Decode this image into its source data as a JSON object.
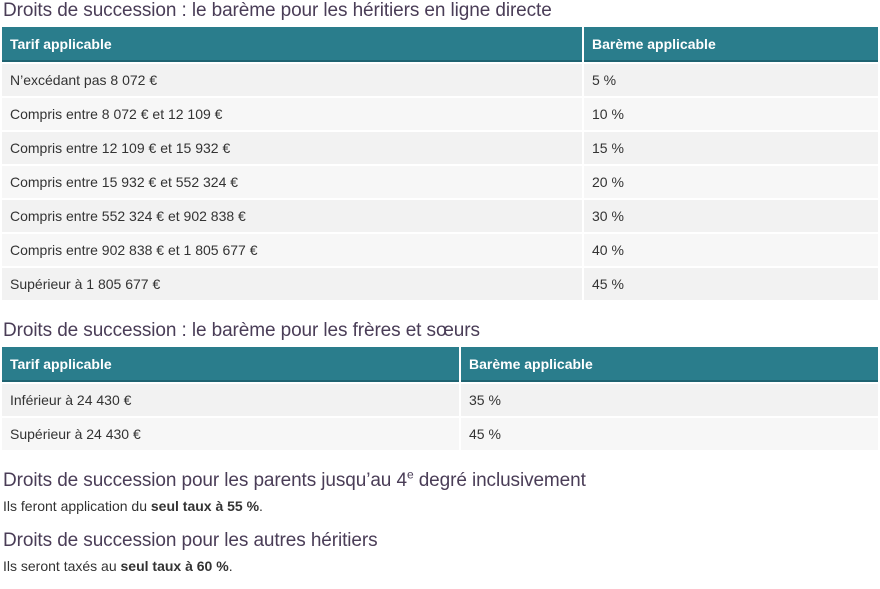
{
  "sections": [
    {
      "title": "Droits de succession : le barème pour les héritiers en ligne directe",
      "table": {
        "header": [
          "Tarif applicable",
          "Barème applicable"
        ],
        "rows": [
          [
            "N’excédant pas 8 072 €",
            "5 %"
          ],
          [
            "Compris entre 8 072 € et 12 109 €",
            "10 %"
          ],
          [
            "Compris entre 12 109 € et 15 932 €",
            "15 %"
          ],
          [
            "Compris entre 15 932 € et 552 324 €",
            "20 %"
          ],
          [
            "Compris entre 552 324 € et 902 838 €",
            "30 %"
          ],
          [
            "Compris entre 902 838 € et 1 805 677 €",
            "40 %"
          ],
          [
            "Supérieur à 1 805 677 €",
            "45 %"
          ]
        ]
      }
    },
    {
      "title": "Droits de succession : le barème pour les frères et sœurs",
      "table": {
        "header": [
          "Tarif applicable",
          "Barème applicable"
        ],
        "rows": [
          [
            "Inférieur à 24 430 €",
            "35 %"
          ],
          [
            "Supérieur à 24 430 €",
            "45 %"
          ]
        ]
      }
    }
  ],
  "notes": [
    {
      "title": {
        "before": "Droits de succession pour les parents jusqu’au 4",
        "sup": "e",
        "after": " degré inclusivement"
      },
      "text": {
        "before": "Ils feront application du ",
        "bold": "seul taux à 55 %",
        "after": "."
      }
    },
    {
      "title": {
        "before": "Droits de succession pour les autres héritiers"
      },
      "text": {
        "before": "Ils seront taxés au ",
        "bold": "seul taux à 60 %",
        "after": "."
      }
    }
  ]
}
